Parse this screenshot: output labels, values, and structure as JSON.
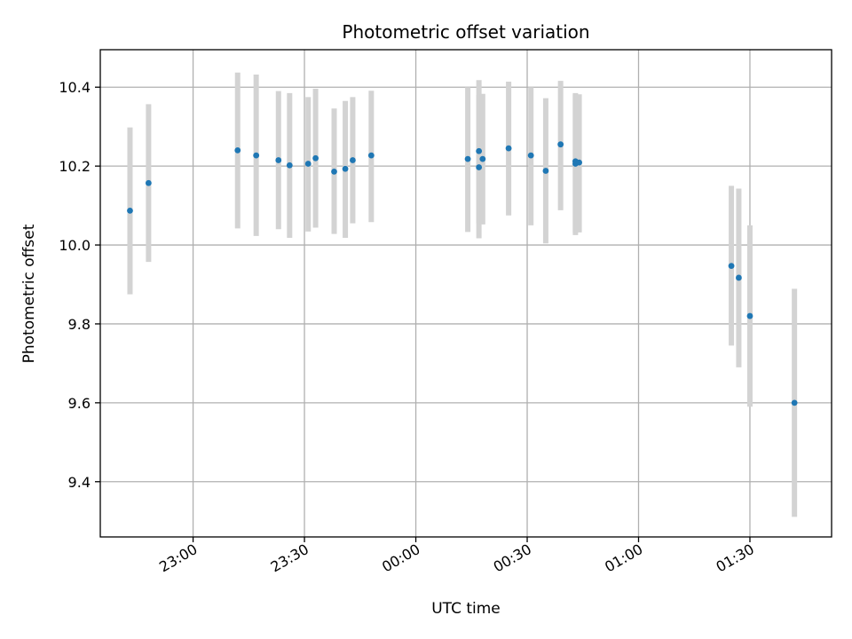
{
  "chart_data": {
    "type": "scatter",
    "title": "Photometric offset variation",
    "xlabel": "UTC time",
    "ylabel": "Photometric offset",
    "x_ticks": [
      "23:00",
      "23:30",
      "00:00",
      "00:30",
      "01:00",
      "01:30"
    ],
    "y_ticks": [
      "9.4",
      "9.6",
      "9.8",
      "10.0",
      "10.2",
      "10.4"
    ],
    "xlim": [
      "22:35",
      "01:52"
    ],
    "ylim": [
      9.26,
      10.495
    ],
    "grid": true,
    "point_color": "#1f77b4",
    "errorbar_color": "#d3d3d3",
    "points": [
      {
        "t": "22:43",
        "y": 10.087,
        "lo": 9.875,
        "hi": 10.298
      },
      {
        "t": "22:48",
        "y": 10.157,
        "lo": 9.957,
        "hi": 10.357
      },
      {
        "t": "23:12",
        "y": 10.24,
        "lo": 10.042,
        "hi": 10.437
      },
      {
        "t": "23:17",
        "y": 10.227,
        "lo": 10.023,
        "hi": 10.432
      },
      {
        "t": "23:23",
        "y": 10.215,
        "lo": 10.04,
        "hi": 10.39
      },
      {
        "t": "23:26",
        "y": 10.202,
        "lo": 10.018,
        "hi": 10.385
      },
      {
        "t": "23:31",
        "y": 10.206,
        "lo": 10.034,
        "hi": 10.375
      },
      {
        "t": "23:33",
        "y": 10.22,
        "lo": 10.044,
        "hi": 10.396
      },
      {
        "t": "23:38",
        "y": 10.186,
        "lo": 10.028,
        "hi": 10.346
      },
      {
        "t": "23:41",
        "y": 10.193,
        "lo": 10.018,
        "hi": 10.365
      },
      {
        "t": "23:43",
        "y": 10.215,
        "lo": 10.055,
        "hi": 10.375
      },
      {
        "t": "23:48",
        "y": 10.227,
        "lo": 10.058,
        "hi": 10.391
      },
      {
        "t": "00:14",
        "y": 10.218,
        "lo": 10.033,
        "hi": 10.4
      },
      {
        "t": "00:17",
        "y": 10.197,
        "lo": 10.017,
        "hi": 10.38
      },
      {
        "t": "00:17",
        "y": 10.238,
        "lo": 10.055,
        "hi": 10.418
      },
      {
        "t": "00:18",
        "y": 10.218,
        "lo": 10.052,
        "hi": 10.383
      },
      {
        "t": "00:25",
        "y": 10.245,
        "lo": 10.075,
        "hi": 10.414
      },
      {
        "t": "00:31",
        "y": 10.227,
        "lo": 10.05,
        "hi": 10.4
      },
      {
        "t": "00:35",
        "y": 10.188,
        "lo": 10.004,
        "hi": 10.372
      },
      {
        "t": "00:39",
        "y": 10.255,
        "lo": 10.088,
        "hi": 10.416
      },
      {
        "t": "00:43",
        "y": 10.212,
        "lo": 10.032,
        "hi": 10.385
      },
      {
        "t": "00:43",
        "y": 10.206,
        "lo": 10.025,
        "hi": 10.382
      },
      {
        "t": "00:44",
        "y": 10.209,
        "lo": 10.032,
        "hi": 10.382
      },
      {
        "t": "01:25",
        "y": 9.947,
        "lo": 9.745,
        "hi": 10.15
      },
      {
        "t": "01:27",
        "y": 9.917,
        "lo": 9.69,
        "hi": 10.143
      },
      {
        "t": "01:30",
        "y": 9.82,
        "lo": 9.59,
        "hi": 10.05
      },
      {
        "t": "01:42",
        "y": 9.6,
        "lo": 9.311,
        "hi": 9.889
      }
    ]
  }
}
